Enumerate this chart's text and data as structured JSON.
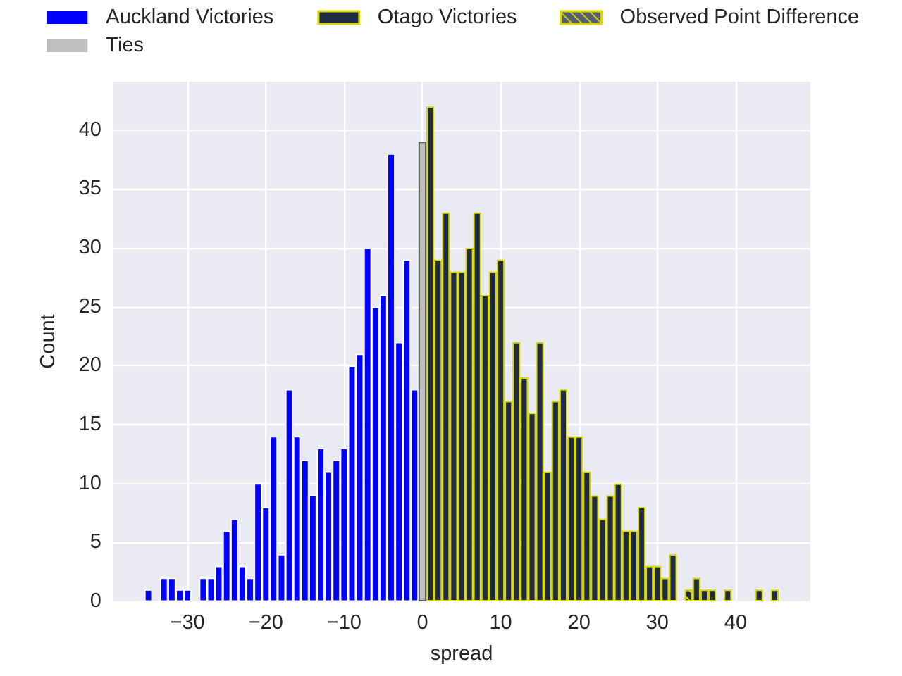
{
  "chart_data": {
    "type": "bar",
    "xlabel": "spread",
    "ylabel": "Count",
    "xlim": [
      -39.55,
      49.55
    ],
    "xticks": [
      {
        "value": -30,
        "label": "−30"
      },
      {
        "value": -20,
        "label": "−20"
      },
      {
        "value": -10,
        "label": "−10"
      },
      0,
      10,
      20,
      30,
      40
    ],
    "ylim": [
      0,
      44.1
    ],
    "yticks": [
      0,
      5,
      10,
      15,
      20,
      25,
      30,
      35,
      40
    ],
    "grid": true,
    "legend": "top",
    "series": [
      {
        "name": "Auckland Victories",
        "color": "#0000ff",
        "x": [
          -35,
          -33,
          -32,
          -31,
          -30,
          -28,
          -27,
          -26,
          -25,
          -24,
          -23,
          -22,
          -21,
          -20,
          -19,
          -18,
          -17,
          -16,
          -15,
          -14,
          -13,
          -12,
          -11,
          -10,
          -9,
          -8,
          -7,
          -6,
          -5,
          -4,
          -3,
          -2,
          -1
        ],
        "values": [
          1,
          2,
          2,
          1,
          1,
          2,
          2,
          3,
          6,
          7,
          3,
          2,
          10,
          8,
          14,
          4,
          18,
          14,
          12,
          9,
          13,
          11,
          12,
          13,
          20,
          21,
          30,
          25,
          26,
          38,
          22,
          29,
          18
        ]
      },
      {
        "name": "Ties",
        "color": "#bfbfbf",
        "x": [
          0
        ],
        "values": [
          39
        ]
      },
      {
        "name": "Otago Victories",
        "color": "#1f2a44",
        "x": [
          1,
          2,
          3,
          4,
          5,
          6,
          7,
          8,
          9,
          10,
          11,
          12,
          13,
          14,
          15,
          16,
          17,
          18,
          19,
          20,
          21,
          22,
          23,
          24,
          25,
          26,
          27,
          28,
          29,
          30,
          31,
          32,
          35,
          36,
          37,
          39,
          43,
          45
        ],
        "values": [
          42,
          29,
          33,
          28,
          28,
          30,
          33,
          26,
          28,
          29,
          17,
          22,
          19,
          16,
          22,
          11,
          17,
          18,
          14,
          14,
          11,
          9,
          7,
          9,
          10,
          6,
          6,
          8,
          3,
          3,
          2,
          4,
          2,
          1,
          1,
          1,
          1,
          1
        ]
      },
      {
        "name": "Observed Point Difference",
        "color": "#1f2a44",
        "x": [
          34
        ],
        "values": [
          1
        ]
      }
    ]
  }
}
